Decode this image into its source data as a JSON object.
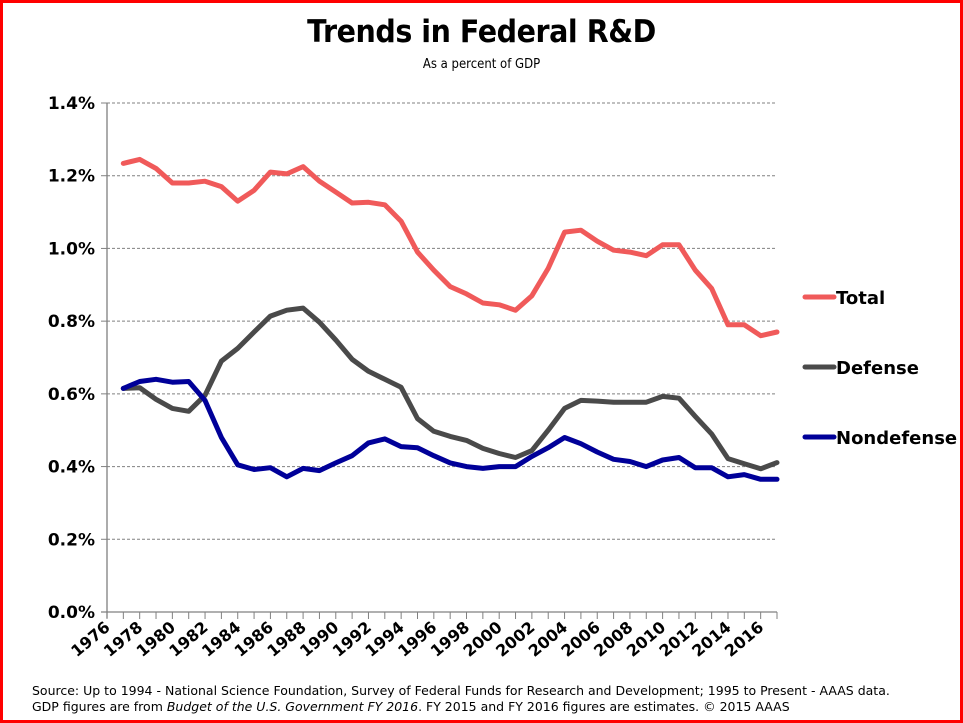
{
  "chart_data": {
    "type": "line",
    "title": "Trends in Federal R&D",
    "subtitle": "As a percent of GDP",
    "xlabel": "",
    "ylabel": "",
    "ylim": [
      0,
      1.4
    ],
    "y_ticks": [
      "0.0%",
      "0.2%",
      "0.4%",
      "0.6%",
      "0.8%",
      "1.0%",
      "1.2%",
      "1.4%"
    ],
    "y_tick_values": [
      0,
      0.2,
      0.4,
      0.6,
      0.8,
      1.0,
      1.2,
      1.4
    ],
    "x_tick_labels": [
      "1976",
      "1978",
      "1980",
      "1982",
      "1984",
      "1986",
      "1988",
      "1990",
      "1992",
      "1994",
      "1996",
      "1998",
      "2000",
      "2002",
      "2004",
      "2006",
      "2008",
      "2010",
      "2012",
      "2014",
      "2016"
    ],
    "grid": true,
    "legend_position": "right",
    "x": [
      1976,
      1977,
      1978,
      1979,
      1980,
      1981,
      1982,
      1983,
      1984,
      1985,
      1986,
      1987,
      1988,
      1989,
      1990,
      1991,
      1992,
      1993,
      1994,
      1995,
      1996,
      1997,
      1998,
      1999,
      2000,
      2001,
      2002,
      2003,
      2004,
      2005,
      2006,
      2007,
      2008,
      2009,
      2010,
      2011,
      2012,
      2013,
      2014,
      2015,
      2016
    ],
    "series": [
      {
        "name": "Total",
        "color": "#f05a5a",
        "values": [
          1.234,
          1.245,
          1.22,
          1.18,
          1.18,
          1.185,
          1.17,
          1.13,
          1.16,
          1.21,
          1.205,
          1.225,
          1.185,
          1.155,
          1.125,
          1.127,
          1.12,
          1.075,
          0.99,
          0.94,
          0.895,
          0.875,
          0.85,
          0.845,
          0.83,
          0.87,
          0.945,
          1.045,
          1.05,
          1.02,
          0.995,
          0.99,
          0.98,
          1.01,
          1.01,
          0.94,
          0.89,
          0.79,
          0.79,
          0.76,
          0.77
        ]
      },
      {
        "name": "Defense",
        "color": "#4a4a4a",
        "values": [
          0.615,
          0.617,
          0.585,
          0.56,
          0.552,
          0.596,
          0.69,
          0.725,
          0.77,
          0.814,
          0.83,
          0.836,
          0.797,
          0.748,
          0.695,
          0.662,
          0.64,
          0.618,
          0.532,
          0.497,
          0.483,
          0.472,
          0.45,
          0.436,
          0.425,
          0.444,
          0.5,
          0.56,
          0.582,
          0.58,
          0.577,
          0.577,
          0.577,
          0.593,
          0.588,
          0.538,
          0.49,
          0.422,
          0.408,
          0.394,
          0.411
        ]
      },
      {
        "name": "Nondefense",
        "color": "#000099",
        "values": [
          0.615,
          0.634,
          0.64,
          0.632,
          0.634,
          0.582,
          0.48,
          0.405,
          0.392,
          0.397,
          0.372,
          0.395,
          0.389,
          0.41,
          0.43,
          0.465,
          0.476,
          0.455,
          0.452,
          0.43,
          0.41,
          0.4,
          0.395,
          0.4,
          0.4,
          0.428,
          0.452,
          0.48,
          0.463,
          0.44,
          0.42,
          0.414,
          0.4,
          0.418,
          0.425,
          0.397,
          0.397,
          0.372,
          0.378,
          0.365,
          0.365
        ]
      }
    ]
  },
  "footer": {
    "line1": "Source: Up to 1994 - National Science Foundation, Survey of Federal Funds for Research and Development; 1995 to Present - AAAS data.",
    "line2_prefix": "GDP figures are from ",
    "line2_italic": "Budget of the U.S. Government FY 2016",
    "line2_suffix": ".  FY 2015 and FY 2016 figures are estimates. © 2015 AAAS"
  },
  "colors": {
    "border": "#ff0000",
    "axis": "#808080",
    "gridline": "#808080"
  }
}
